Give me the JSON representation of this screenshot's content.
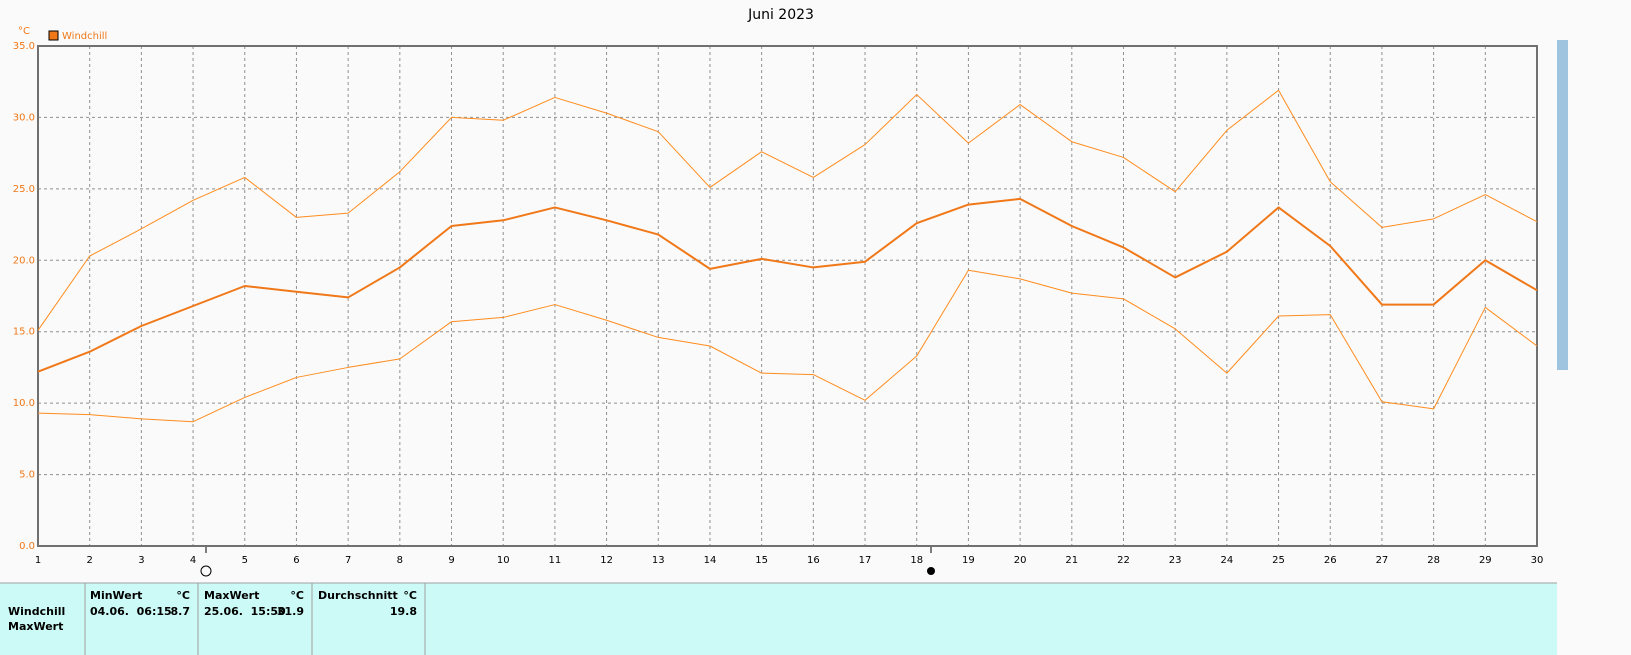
{
  "chart_data": {
    "type": "line",
    "title": "Juni 2023",
    "ylabel": "°C",
    "x": [
      1,
      2,
      3,
      4,
      5,
      6,
      7,
      8,
      9,
      10,
      11,
      12,
      13,
      14,
      15,
      16,
      17,
      18,
      19,
      20,
      21,
      22,
      23,
      24,
      25,
      26,
      27,
      28,
      29,
      30
    ],
    "xlim": [
      1,
      30
    ],
    "xticks": [
      1,
      2,
      3,
      4,
      5,
      6,
      7,
      8,
      9,
      10,
      11,
      12,
      13,
      14,
      15,
      16,
      17,
      18,
      19,
      20,
      21,
      22,
      23,
      24,
      25,
      26,
      27,
      28,
      29,
      30
    ],
    "ylim": [
      0,
      35
    ],
    "yticks": [
      {
        "value": 0,
        "label": "0.0"
      },
      {
        "value": 5,
        "label": "5.0"
      },
      {
        "value": 10,
        "label": "10.0"
      },
      {
        "value": 15,
        "label": "15.0"
      },
      {
        "value": 20,
        "label": "20.0"
      },
      {
        "value": 25,
        "label": "25.0"
      },
      {
        "value": 30,
        "label": "30.0"
      },
      {
        "value": 35,
        "label": "35.0"
      }
    ],
    "grid": true,
    "series": [
      {
        "name": "Windchill",
        "color": "#f07818",
        "width": 2,
        "values": [
          12.2,
          13.6,
          15.4,
          16.8,
          18.2,
          17.8,
          17.4,
          19.5,
          22.4,
          22.8,
          23.7,
          22.8,
          21.8,
          19.4,
          20.1,
          19.5,
          19.9,
          22.6,
          23.9,
          24.3,
          22.4,
          20.9,
          18.8,
          20.6,
          23.7,
          21.0,
          16.9,
          16.9,
          20.0,
          17.9
        ]
      },
      {
        "color": "#ff8c1e",
        "width": 1,
        "values": [
          15.1,
          20.3,
          22.2,
          24.2,
          25.8,
          23.0,
          23.3,
          26.2,
          30.0,
          29.8,
          31.4,
          30.3,
          29.0,
          25.1,
          27.6,
          25.8,
          28.1,
          31.6,
          28.2,
          30.9,
          28.3,
          27.2,
          24.8,
          29.1,
          31.9,
          25.5,
          22.3,
          22.9,
          24.6,
          22.7
        ]
      },
      {
        "color": "#ff8c1e",
        "width": 1,
        "values": [
          9.3,
          9.2,
          8.9,
          8.7,
          10.4,
          11.8,
          12.5,
          13.1,
          15.7,
          16.0,
          16.9,
          15.8,
          14.6,
          14.0,
          12.1,
          12.0,
          10.2,
          13.3,
          19.3,
          18.7,
          17.7,
          17.3,
          15.2,
          12.1,
          16.1,
          16.2,
          10.1,
          9.6,
          16.7,
          14.0
        ]
      }
    ]
  },
  "table": {
    "header": [
      [
        "MinWert",
        "°C"
      ],
      [
        "MaxWert",
        "°C"
      ],
      [
        "Durchschnitt",
        "°C"
      ]
    ],
    "rows": [
      {
        "label": "Windchill",
        "cells": [
          {
            "time": "04.06.  06:15",
            "value": "8.7"
          },
          {
            "time": "25.06.  15:50",
            "value": "31.9"
          },
          {
            "value": "19.8"
          }
        ]
      },
      {
        "label": "MaxWert"
      }
    ]
  }
}
